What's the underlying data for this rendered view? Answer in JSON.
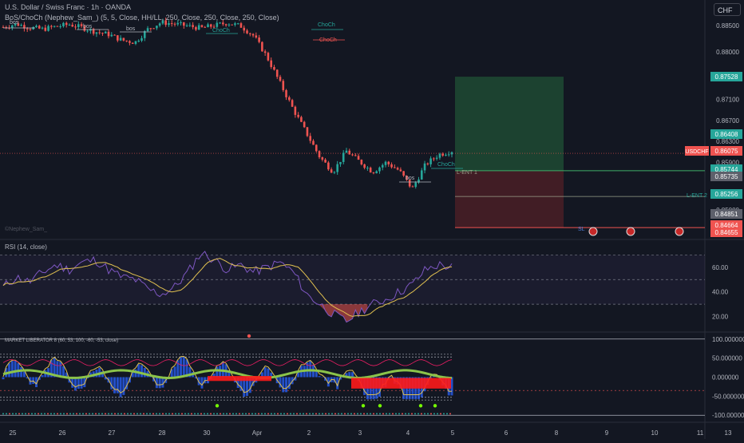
{
  "header": {
    "symbol_line": "U.S. Dollar / Swiss Franc · 1h · OANDA",
    "indicator_line": "BoS/ChoCh (Nephew_Sam_) (5, 5, Close, HH/LL, 250, Close, 250, Close, 250, Close)",
    "currency_button": "CHF",
    "watermark": "©Nephew_Sam_"
  },
  "colors": {
    "background": "#131722",
    "up": "#26a69a",
    "down": "#ef5350",
    "target_zone": "#1e4a33",
    "stop_zone": "#4a1f26",
    "rsi_line": "#7e57c2",
    "rsi_ma": "#e0c050",
    "pane_border": "#2a2e39"
  },
  "chart_data": [
    {
      "type": "line",
      "name": "price",
      "x": [
        "25",
        "26",
        "27",
        "28",
        "30",
        "Apr",
        "2",
        "3",
        "4",
        "5",
        "6",
        "8",
        "9",
        "10",
        "11",
        "13"
      ],
      "ylim": [
        0.845,
        0.8862
      ],
      "y_ticks": [
        "0.88500",
        "0.88000",
        "0.87100",
        "0.86700",
        "0.86300",
        "0.85900",
        "0.85000"
      ],
      "approx_path": [
        0.8847,
        0.8853,
        0.8846,
        0.8843,
        0.8848,
        0.8852,
        0.8846,
        0.8838,
        0.8833,
        0.8822,
        0.8818,
        0.8844,
        0.8856,
        0.8853,
        0.8849,
        0.8845,
        0.885,
        0.8855,
        0.8849,
        0.883,
        0.879,
        0.874,
        0.869,
        0.8645,
        0.86,
        0.8572,
        0.8612,
        0.8592,
        0.8572,
        0.859,
        0.8575,
        0.854,
        0.8586,
        0.8605,
        0.8612
      ],
      "price_labels": [
        {
          "label": "0.87528",
          "color": "#26a69a"
        },
        {
          "label": "0.86408",
          "color": "#26a69a"
        },
        {
          "label": "USDCHF",
          "value": "0.86075",
          "color": "#ef5350"
        },
        {
          "label": "0.85744",
          "color": "#26a69a"
        },
        {
          "label": "0.85735",
          "color": "#b2b5be"
        },
        {
          "label": "0.85256",
          "color": "#26a69a"
        },
        {
          "label": "0.84851",
          "color": "#b2b5be"
        },
        {
          "label": "0.84664",
          "color": "#ef5350"
        },
        {
          "label": "0.84655",
          "color": "#ef5350"
        }
      ],
      "annotations": [
        "bos",
        "bos",
        "bos",
        "ChoCh",
        "ChoCh",
        "ChoCh",
        "bos",
        "ChoCh",
        "L-ENT 1",
        "L-ENT 2",
        "SL"
      ],
      "levels": {
        "entry1": 0.85744,
        "entry2": 0.85256,
        "sl": 0.84664,
        "tp": 0.87528
      }
    },
    {
      "type": "line",
      "name": "rsi",
      "title": "RSI (14, close)",
      "ylim": [
        10,
        80
      ],
      "y_ticks": [
        "60.00",
        "40.00",
        "20.00"
      ],
      "bands": [
        70,
        50,
        30
      ],
      "approx_values": [
        44,
        52,
        48,
        56,
        62,
        58,
        64,
        66,
        58,
        52,
        50,
        42,
        38,
        44,
        56,
        72,
        66,
        58,
        62,
        56,
        60,
        64,
        56,
        38,
        30,
        22,
        16,
        24,
        30,
        34,
        40,
        46,
        58,
        62,
        60
      ]
    },
    {
      "type": "area",
      "name": "market_liberator",
      "title": "MARKET LIBERATOR 8 (60, 53, 100, -60, -53, close)",
      "ylim": [
        -110,
        110
      ],
      "y_ticks": [
        "100.000000",
        "50.000000",
        "0.000000",
        "-50.000000",
        "-100.000000"
      ]
    }
  ],
  "time_axis": [
    "25",
    "26",
    "27",
    "28",
    "30",
    "Apr",
    "2",
    "3",
    "4",
    "5",
    "6",
    "8",
    "9",
    "10",
    "11",
    "13"
  ]
}
